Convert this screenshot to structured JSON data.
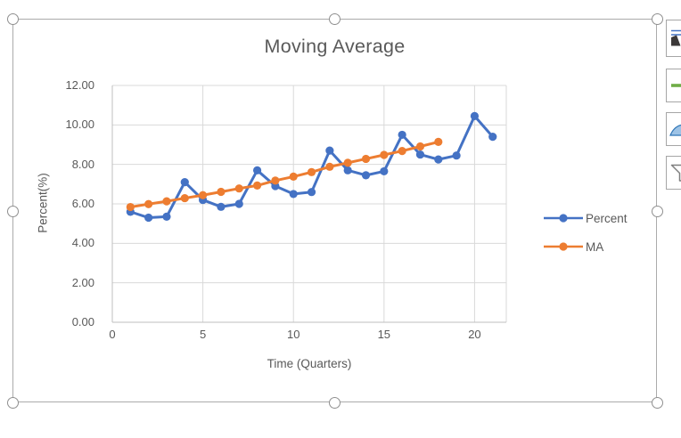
{
  "chart": {
    "title": "Moving Average",
    "x_axis_title": "Time (Quarters)",
    "y_axis_title": "Percent(%)"
  },
  "legend": {
    "items": [
      {
        "label": "Percent",
        "color": "#4472C4"
      },
      {
        "label": "MA",
        "color": "#ED7D31"
      }
    ]
  },
  "side_buttons": [
    {
      "id": "layout-options",
      "icon": "layout-options-icon"
    },
    {
      "id": "chart-elements",
      "icon": "plus-icon",
      "color": "#70AD47"
    },
    {
      "id": "chart-styles",
      "icon": "paintbrush-icon",
      "color": "#9DC3E6"
    },
    {
      "id": "chart-filters",
      "icon": "funnel-icon",
      "color": "#7F7F7F"
    }
  ],
  "colors": {
    "series_percent": "#4472C4",
    "series_ma": "#ED7D31",
    "gridline": "#D9D9D9",
    "axis_line": "#BFBFBF",
    "text": "#595959",
    "frame_border": "#ABABAB",
    "handle_stroke": "#8F8F8F"
  },
  "chart_data": {
    "type": "line",
    "title": "Moving Average",
    "xlabel": "Time (Quarters)",
    "ylabel": "Percent(%)",
    "xlim": [
      0,
      21.75
    ],
    "ylim": [
      0,
      12
    ],
    "x_tick_values": [
      0,
      5,
      10,
      15,
      20
    ],
    "x_tick_labels": [
      "0",
      "5",
      "10",
      "15",
      "20"
    ],
    "y_tick_values": [
      0,
      2,
      4,
      6,
      8,
      10,
      12
    ],
    "y_tick_labels": [
      "0.00",
      "2.00",
      "4.00",
      "6.00",
      "8.00",
      "10.00",
      "12.00"
    ],
    "grid": true,
    "legend_position": "right",
    "marker": "circle",
    "series": [
      {
        "name": "Percent",
        "color": "#4472C4",
        "x": [
          1,
          2,
          3,
          4,
          5,
          6,
          7,
          8,
          9,
          10,
          11,
          12,
          13,
          14,
          15,
          16,
          17,
          18,
          19,
          20,
          21
        ],
        "values": [
          5.6,
          5.3,
          5.35,
          7.1,
          6.2,
          5.85,
          6.0,
          7.7,
          6.9,
          6.5,
          6.6,
          8.7,
          7.7,
          7.45,
          7.65,
          9.5,
          8.5,
          8.25,
          8.45,
          10.45,
          9.4
        ]
      },
      {
        "name": "MA",
        "color": "#ED7D31",
        "x": [
          1,
          2,
          3,
          4,
          5,
          6,
          7,
          8,
          9,
          10,
          11,
          12,
          13,
          14,
          15,
          16,
          17,
          18
        ],
        "values": [
          5.84,
          5.99,
          6.13,
          6.29,
          6.44,
          6.61,
          6.78,
          6.93,
          7.18,
          7.38,
          7.61,
          7.88,
          8.08,
          8.28,
          8.48,
          8.68,
          8.91,
          9.14
        ]
      }
    ]
  }
}
